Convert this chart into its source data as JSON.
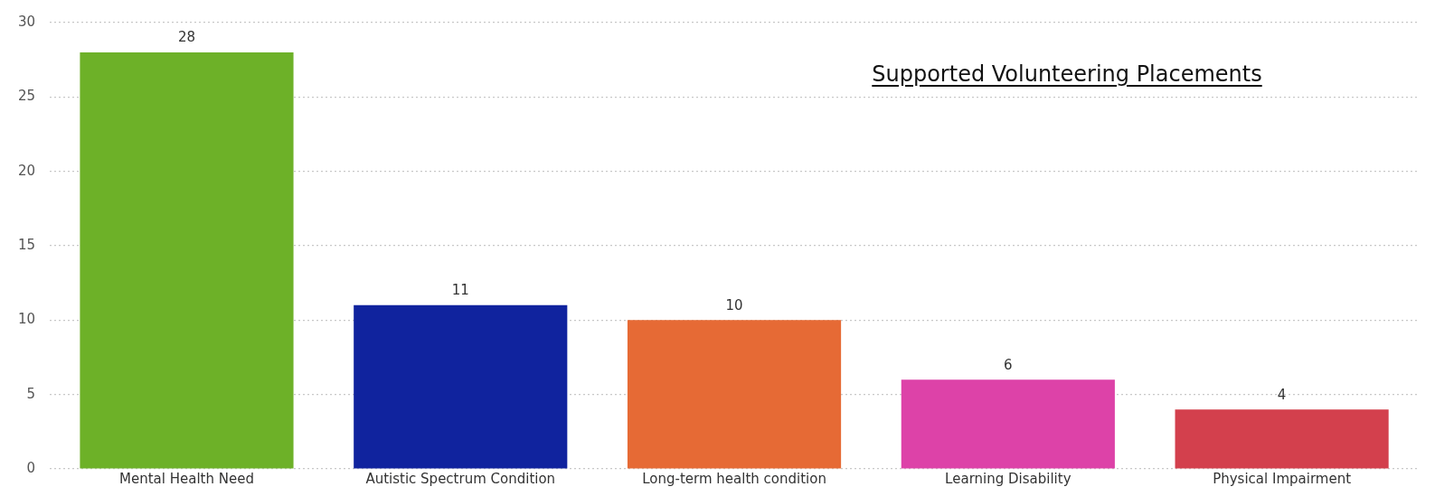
{
  "chart_data": {
    "type": "bar",
    "title": "Supported Volunteering Placements",
    "categories": [
      "Mental Health Need",
      "Autistic Spectrum Condition",
      "Long-term health condition",
      "Learning Disability",
      "Physical Impairment"
    ],
    "values": [
      28,
      11,
      10,
      6,
      4
    ],
    "colors": [
      "#6db128",
      "#10239e",
      "#e66a35",
      "#dd42a8",
      "#d3404d"
    ],
    "ylim": [
      0,
      30
    ],
    "yticks": [
      0,
      5,
      10,
      15,
      20,
      25,
      30
    ],
    "grid": "y",
    "data_labels": true
  }
}
